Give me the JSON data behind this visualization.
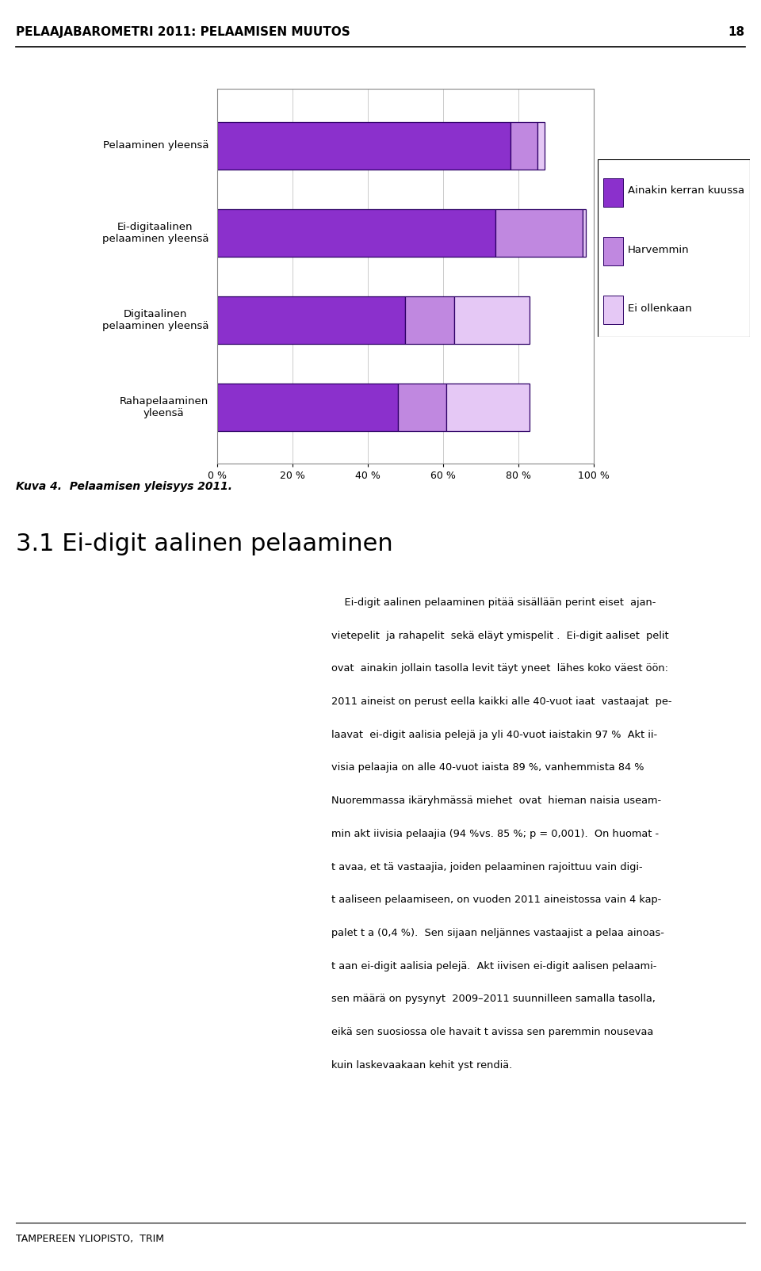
{
  "categories": [
    "Pelaaminen yleensä",
    "Ei-digitaalinen\npelaaminen yleensä",
    "Digitaalinen\npelaaminen yleensä",
    "Rahapelaaminen\nyleensä"
  ],
  "series_names": [
    "Ainakin kerran kuussa",
    "Harvemmin",
    "Ei ollenkaan"
  ],
  "values": [
    [
      78,
      7,
      2
    ],
    [
      74,
      23,
      1
    ],
    [
      50,
      13,
      20
    ],
    [
      48,
      13,
      22
    ]
  ],
  "colors": [
    "#8B30CC",
    "#C088E0",
    "#E5C8F5"
  ],
  "bar_edge_color": "#2D0066",
  "xticks": [
    0,
    20,
    40,
    60,
    80,
    100
  ],
  "xticklabels": [
    "0 %",
    "20 %",
    "40 %",
    "60 %",
    "80 %",
    "100 %"
  ],
  "header_title": "PELAAJABAROMETRI 2011: PELAAMISEN MUUTOS",
  "header_page": "18",
  "figure_caption": "Kuva 4.  Pelaamisen yleisyys 2011.",
  "section_title": "3.1 Ei-digit aalinen pelaaminen",
  "body_lines": [
    "    Ei-digit aalinen pelaaminen pitää sisällään perint eiset  ajan-",
    "vietepelit  ja rahapelit  sekä eläyt ymispelit .  Ei-digit aaliset  pelit",
    "ovat  ainakin jollain tasolla levit täyt yneet  lähes koko väest öön:",
    "2011 aineist on perust eella kaikki alle 40-vuot iaat  vastaajat  pe-",
    "laavat  ei-digit aalisia pelejä ja yli 40-vuot iaistakin 97 %  Akt ii-",
    "visia pelaajia on alle 40-vuot iaista 89 %, vanhemmista 84 %",
    "Nuoremmassa ikäryhmässä miehet  ovat  hieman naisia useam-",
    "min akt iivisia pelaajia (94 %vs. 85 %; p = 0,001).  On huomat -",
    "t avaa, et tä vastaajia, joiden pelaaminen rajoittuu vain digi-",
    "t aaliseen pelaamiseen, on vuoden 2011 aineistossa vain 4 kap-",
    "palet t a (0,4 %).  Sen sijaan neljännes vastaajist a pelaa ainoas-",
    "t aan ei-digit aalisia pelejä.  Akt iivisen ei-digit aalisen pelaami-",
    "sen määrä on pysynyt  2009–2011 suunnilleen samalla tasolla,",
    "eikä sen suosiossa ole havait t avissa sen paremmin nousevaa",
    "kuin laskevaakaan kehit yst rendiä."
  ],
  "footer_text": "TAMPEREEN YLIOPISTO,  TRIM",
  "bar_height": 0.55
}
